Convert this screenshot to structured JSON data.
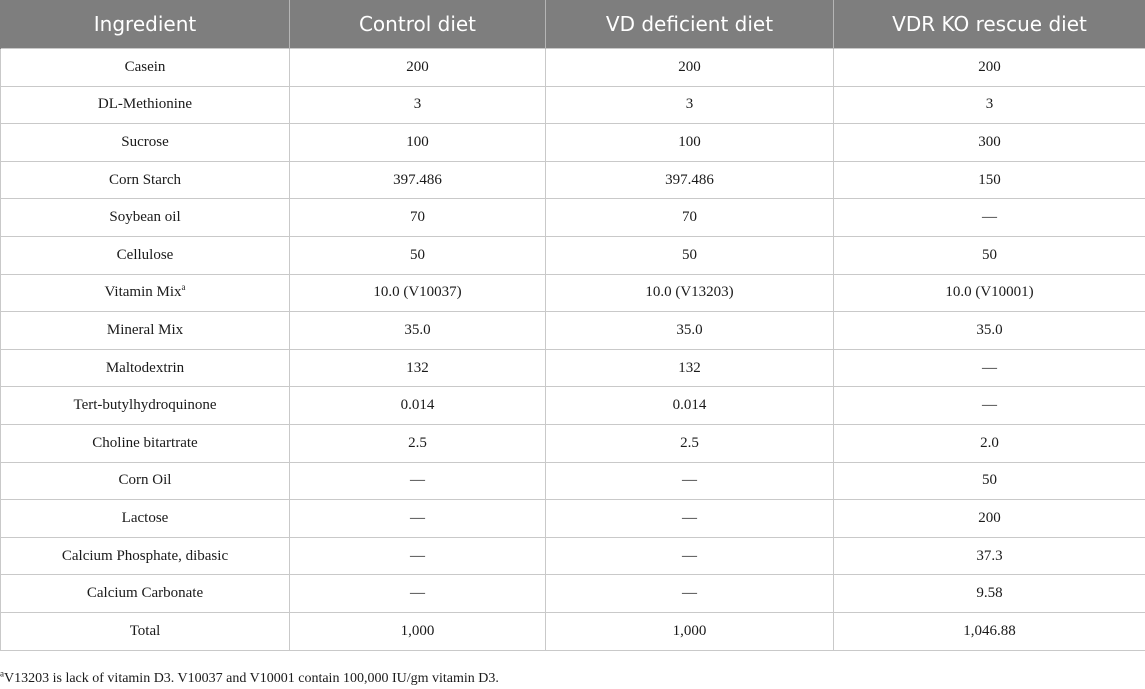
{
  "table": {
    "headers": [
      "Ingredient",
      "Control diet",
      "VD deficient diet",
      "VDR KO rescue diet"
    ],
    "rows": [
      {
        "ingredient": "Casein",
        "sup": "",
        "values": [
          "200",
          "200",
          "200"
        ]
      },
      {
        "ingredient": "DL-Methionine",
        "sup": "",
        "values": [
          "3",
          "3",
          "3"
        ]
      },
      {
        "ingredient": "Sucrose",
        "sup": "",
        "values": [
          "100",
          "100",
          "300"
        ]
      },
      {
        "ingredient": "Corn Starch",
        "sup": "",
        "values": [
          "397.486",
          "397.486",
          "150"
        ]
      },
      {
        "ingredient": "Soybean oil",
        "sup": "",
        "values": [
          "70",
          "70",
          "—"
        ]
      },
      {
        "ingredient": "Cellulose",
        "sup": "",
        "values": [
          "50",
          "50",
          "50"
        ]
      },
      {
        "ingredient": "Vitamin Mix",
        "sup": "a",
        "values": [
          "10.0 (V10037)",
          "10.0 (V13203)",
          "10.0 (V10001)"
        ]
      },
      {
        "ingredient": "Mineral Mix",
        "sup": "",
        "values": [
          "35.0",
          "35.0",
          "35.0"
        ]
      },
      {
        "ingredient": "Maltodextrin",
        "sup": "",
        "values": [
          "132",
          "132",
          "—"
        ]
      },
      {
        "ingredient": "Tert-butylhydroquinone",
        "sup": "",
        "values": [
          "0.014",
          "0.014",
          "—"
        ]
      },
      {
        "ingredient": "Choline bitartrate",
        "sup": "",
        "values": [
          "2.5",
          "2.5",
          "2.0"
        ]
      },
      {
        "ingredient": "Corn Oil",
        "sup": "",
        "values": [
          "—",
          "—",
          "50"
        ]
      },
      {
        "ingredient": "Lactose",
        "sup": "",
        "values": [
          "—",
          "—",
          "200"
        ]
      },
      {
        "ingredient": "Calcium Phosphate, dibasic",
        "sup": "",
        "values": [
          "—",
          "—",
          "37.3"
        ]
      },
      {
        "ingredient": "Calcium Carbonate",
        "sup": "",
        "values": [
          "—",
          "—",
          "9.58"
        ]
      },
      {
        "ingredient": "Total",
        "sup": "",
        "values": [
          "1,000",
          "1,000",
          "1,046.88"
        ]
      }
    ]
  },
  "footnote": {
    "marker": "a",
    "text": "V13203 is lack of vitamin D3. V10037 and V10001 contain 100,000 IU/gm vitamin D3."
  }
}
